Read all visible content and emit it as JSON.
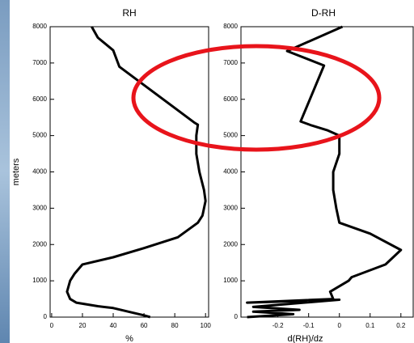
{
  "chart_data": [
    {
      "type": "line",
      "title": "RH",
      "xlabel": "%",
      "ylabel": "meters",
      "color": "#000000",
      "xlim": [
        -1,
        102
      ],
      "ylim": [
        0,
        8000
      ],
      "xticks": [
        0,
        20,
        40,
        60,
        80,
        100
      ],
      "yticks": [
        0,
        1000,
        2000,
        3000,
        4000,
        5000,
        6000,
        7000,
        8000
      ],
      "x": [
        26,
        30,
        40,
        44,
        93,
        95,
        94,
        94,
        96,
        99,
        100,
        98,
        95,
        82,
        60,
        40,
        20,
        15,
        12,
        10,
        12,
        16,
        30,
        40,
        50,
        60,
        64
      ],
      "y": [
        8000,
        7700,
        7350,
        6900,
        5350,
        5300,
        5000,
        4500,
        4000,
        3500,
        3200,
        2800,
        2600,
        2200,
        1900,
        1650,
        1450,
        1200,
        1000,
        700,
        500,
        400,
        300,
        250,
        150,
        50,
        0
      ]
    },
    {
      "type": "line",
      "title": "D-RH",
      "xlabel": "d(RH)/dz",
      "color": "#000000",
      "xlim": [
        -0.32,
        0.24
      ],
      "ylim": [
        0,
        8000
      ],
      "xticks": [
        -0.2,
        -0.1,
        0,
        0.1,
        0.2
      ],
      "yticks": [
        0,
        1000,
        2000,
        3000,
        4000,
        5000,
        6000,
        7000,
        8000
      ],
      "x": [
        0.01,
        -0.17,
        -0.05,
        -0.126,
        -0.09,
        -0.04,
        0.0,
        0.0,
        -0.02,
        -0.02,
        -0.01,
        0.0,
        0.1,
        0.2,
        0.15,
        0.04,
        0.03,
        -0.03,
        -0.02,
        -0.3,
        0.0,
        -0.28,
        -0.13,
        -0.28,
        -0.15,
        -0.3
      ],
      "y": [
        8000,
        7330,
        6930,
        5390,
        5280,
        5150,
        5000,
        4500,
        4000,
        3500,
        3000,
        2600,
        2300,
        1850,
        1450,
        1100,
        1000,
        700,
        500,
        400,
        480,
        280,
        200,
        150,
        80,
        0
      ]
    }
  ]
}
